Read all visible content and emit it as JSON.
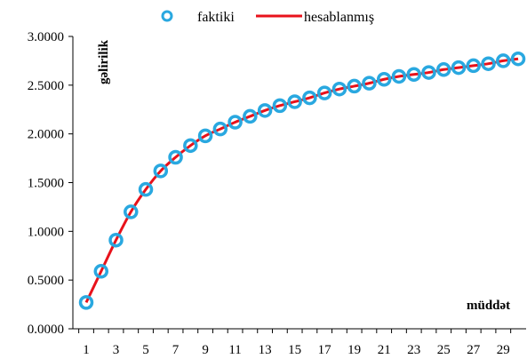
{
  "chart_data": {
    "type": "line",
    "ylabel": "gəlirilik",
    "xlabel": "müddət",
    "legend_placement": "top",
    "xlim": [
      1,
      30
    ],
    "ylim": [
      0,
      3
    ],
    "y_ticks": [
      "0.0000",
      "0.5000",
      "1.0000",
      "1.5000",
      "2.0000",
      "2.5000",
      "3.0000"
    ],
    "x_tick_labels": [
      "1",
      "3",
      "5",
      "7",
      "9",
      "11",
      "13",
      "15",
      "17",
      "19",
      "21",
      "23",
      "25",
      "27",
      "29"
    ],
    "grid": false,
    "x": [
      1,
      2,
      3,
      4,
      5,
      6,
      7,
      8,
      9,
      10,
      11,
      12,
      13,
      14,
      15,
      16,
      17,
      18,
      19,
      20,
      21,
      22,
      23,
      24,
      25,
      26,
      27,
      28,
      29,
      30
    ],
    "series": [
      {
        "name": "faktiki",
        "style": "markers",
        "color": "#29a8e0",
        "values": [
          0.27,
          0.59,
          0.91,
          1.2,
          1.43,
          1.62,
          1.76,
          1.88,
          1.98,
          2.05,
          2.12,
          2.18,
          2.24,
          2.29,
          2.33,
          2.37,
          2.42,
          2.46,
          2.49,
          2.52,
          2.56,
          2.59,
          2.61,
          2.63,
          2.66,
          2.68,
          2.7,
          2.72,
          2.75,
          2.77
        ]
      },
      {
        "name": "hesablanmış",
        "style": "line",
        "color": "#e8121b",
        "values": [
          0.27,
          0.59,
          0.91,
          1.2,
          1.43,
          1.62,
          1.76,
          1.88,
          1.98,
          2.05,
          2.12,
          2.18,
          2.24,
          2.29,
          2.33,
          2.37,
          2.42,
          2.46,
          2.49,
          2.52,
          2.56,
          2.59,
          2.61,
          2.63,
          2.66,
          2.68,
          2.7,
          2.72,
          2.75,
          2.77
        ]
      }
    ]
  }
}
